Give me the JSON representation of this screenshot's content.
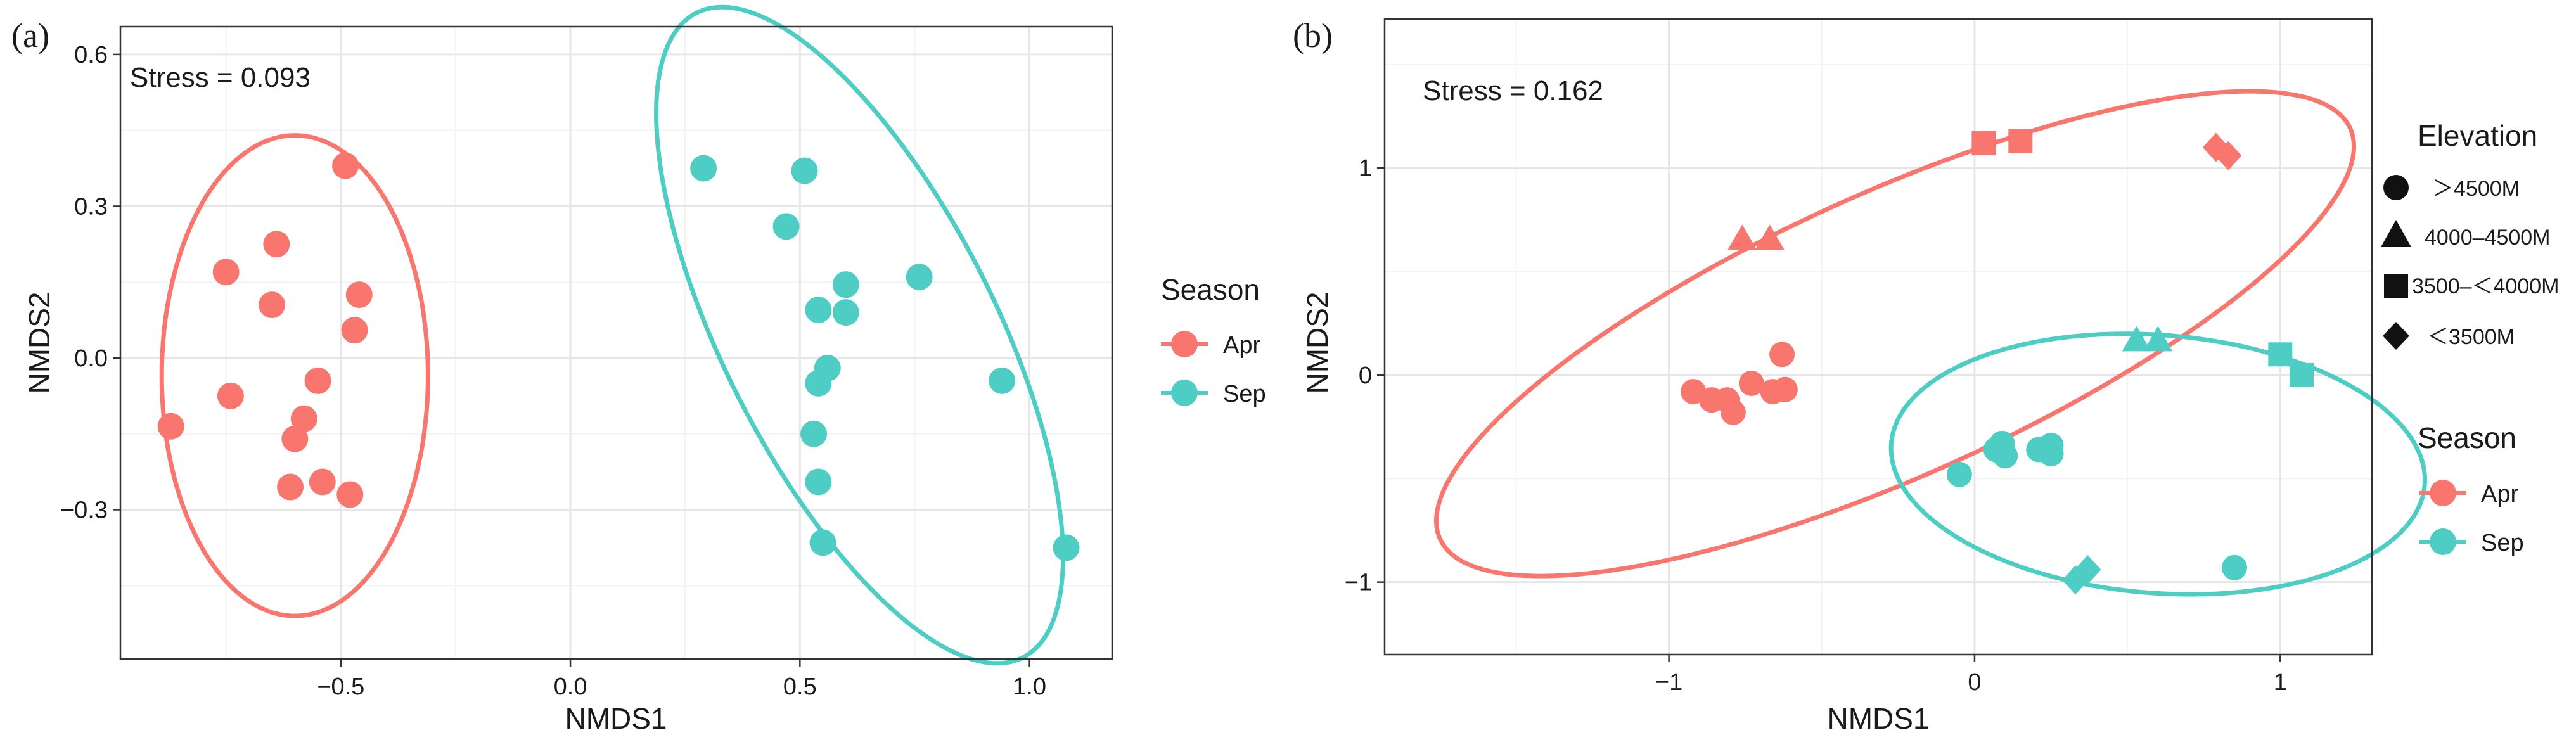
{
  "colors": {
    "apr": "#F8766D",
    "sep": "#4ECDC4",
    "grid_major": "#E6E6E6",
    "grid_minor": "#F3F3F3",
    "frame": "#333333"
  },
  "chart_data": [
    {
      "type": "scatter",
      "panel_label": "(a)",
      "stress_label": "Stress = 0.093",
      "xlabel": "NMDS1",
      "ylabel": "NMDS2",
      "xlim": [
        -0.98,
        1.18
      ],
      "ylim": [
        -0.595,
        0.655
      ],
      "x_ticks": [
        -0.5,
        0.0,
        0.5,
        1.0
      ],
      "x_tick_labels": [
        "−0.5",
        "0.0",
        "0.5",
        "1.0"
      ],
      "y_ticks": [
        -0.3,
        0.0,
        0.3,
        0.6
      ],
      "y_tick_labels": [
        "−0.3",
        "0.0",
        "0.3",
        "0.6"
      ],
      "legend": {
        "title": "Season",
        "entries": [
          "Apr",
          "Sep"
        ],
        "placement": "right"
      },
      "series": [
        {
          "name": "Apr",
          "color_key": "apr",
          "points": [
            {
              "x": -0.49,
              "y": 0.38
            },
            {
              "x": -0.64,
              "y": 0.225
            },
            {
              "x": -0.75,
              "y": 0.17
            },
            {
              "x": -0.65,
              "y": 0.105
            },
            {
              "x": -0.46,
              "y": 0.125
            },
            {
              "x": -0.47,
              "y": 0.055
            },
            {
              "x": -0.74,
              "y": -0.075
            },
            {
              "x": -0.55,
              "y": -0.045
            },
            {
              "x": -0.58,
              "y": -0.12
            },
            {
              "x": -0.6,
              "y": -0.16
            },
            {
              "x": -0.87,
              "y": -0.135
            },
            {
              "x": -0.61,
              "y": -0.255
            },
            {
              "x": -0.54,
              "y": -0.245
            },
            {
              "x": -0.48,
              "y": -0.27
            }
          ]
        },
        {
          "name": "Sep",
          "color_key": "sep",
          "points": [
            {
              "x": 0.29,
              "y": 0.375
            },
            {
              "x": 0.51,
              "y": 0.37
            },
            {
              "x": 0.47,
              "y": 0.26
            },
            {
              "x": 0.6,
              "y": 0.145
            },
            {
              "x": 0.54,
              "y": 0.095
            },
            {
              "x": 0.6,
              "y": 0.09
            },
            {
              "x": 0.76,
              "y": 0.16
            },
            {
              "x": 0.56,
              "y": -0.02
            },
            {
              "x": 0.54,
              "y": -0.05
            },
            {
              "x": 0.94,
              "y": -0.045
            },
            {
              "x": 0.53,
              "y": -0.15
            },
            {
              "x": 0.54,
              "y": -0.245
            },
            {
              "x": 0.55,
              "y": -0.365
            },
            {
              "x": 1.08,
              "y": -0.375
            }
          ]
        }
      ],
      "ellipses": [
        {
          "group": "Apr",
          "cx": -0.6,
          "cy": -0.035,
          "rx": 0.29,
          "ry": 0.475,
          "angle_deg": 0
        },
        {
          "group": "Sep",
          "cx": 0.63,
          "cy": 0.045,
          "rx": 0.73,
          "ry": 0.29,
          "angle_deg": -60
        }
      ]
    },
    {
      "type": "scatter",
      "panel_label": "(b)",
      "stress_label": "Stress = 0.162",
      "xlabel": "NMDS1",
      "ylabel": "NMDS2",
      "xlim": [
        -1.93,
        1.3
      ],
      "ylim": [
        -1.35,
        1.72
      ],
      "x_ticks": [
        -1,
        0,
        1
      ],
      "x_tick_labels": [
        "−1",
        "0",
        "1"
      ],
      "y_ticks": [
        -1,
        0,
        1
      ],
      "y_tick_labels": [
        "−1",
        "0",
        "1"
      ],
      "legend": {
        "elevation_title": "Elevation",
        "elevation_entries": [
          {
            "shape": "circle",
            "label": "＞4500M"
          },
          {
            "shape": "triangle",
            "label": "4000–4500M"
          },
          {
            "shape": "square",
            "label": "3500–＜4000M"
          },
          {
            "shape": "diamond",
            "label": "＜3500M"
          }
        ],
        "season_title": "Season",
        "season_entries": [
          "Apr",
          "Sep"
        ],
        "placement": "right"
      },
      "series": [
        {
          "name": "Apr",
          "color_key": "apr",
          "points": [
            {
              "x": -0.92,
              "y": -0.08,
              "shape": "circle"
            },
            {
              "x": -0.86,
              "y": -0.12,
              "shape": "circle"
            },
            {
              "x": -0.81,
              "y": -0.12,
              "shape": "circle"
            },
            {
              "x": -0.79,
              "y": -0.18,
              "shape": "circle"
            },
            {
              "x": -0.73,
              "y": -0.04,
              "shape": "circle"
            },
            {
              "x": -0.66,
              "y": -0.08,
              "shape": "circle"
            },
            {
              "x": -0.62,
              "y": -0.07,
              "shape": "circle"
            },
            {
              "x": -0.63,
              "y": 0.1,
              "shape": "circle"
            },
            {
              "x": -0.76,
              "y": 0.66,
              "shape": "triangle"
            },
            {
              "x": -0.67,
              "y": 0.66,
              "shape": "triangle"
            },
            {
              "x": 0.03,
              "y": 1.12,
              "shape": "square"
            },
            {
              "x": 0.15,
              "y": 1.13,
              "shape": "square"
            },
            {
              "x": 0.79,
              "y": 1.1,
              "shape": "diamond"
            },
            {
              "x": 0.83,
              "y": 1.06,
              "shape": "diamond"
            }
          ]
        },
        {
          "name": "Sep",
          "color_key": "sep",
          "points": [
            {
              "x": -0.05,
              "y": -0.48,
              "shape": "circle"
            },
            {
              "x": 0.07,
              "y": -0.36,
              "shape": "circle"
            },
            {
              "x": 0.09,
              "y": -0.33,
              "shape": "circle"
            },
            {
              "x": 0.1,
              "y": -0.39,
              "shape": "circle"
            },
            {
              "x": 0.21,
              "y": -0.36,
              "shape": "circle"
            },
            {
              "x": 0.25,
              "y": -0.34,
              "shape": "circle"
            },
            {
              "x": 0.25,
              "y": -0.38,
              "shape": "circle"
            },
            {
              "x": 0.85,
              "y": -0.93,
              "shape": "circle"
            },
            {
              "x": 0.53,
              "y": 0.17,
              "shape": "triangle"
            },
            {
              "x": 0.6,
              "y": 0.17,
              "shape": "triangle"
            },
            {
              "x": 1.0,
              "y": 0.1,
              "shape": "square"
            },
            {
              "x": 1.07,
              "y": 0.0,
              "shape": "square"
            },
            {
              "x": 0.33,
              "y": -0.99,
              "shape": "diamond"
            },
            {
              "x": 0.37,
              "y": -0.94,
              "shape": "diamond"
            }
          ]
        }
      ],
      "ellipses": [
        {
          "group": "Apr",
          "cx": -0.26,
          "cy": 0.2,
          "rx": 1.8,
          "ry": 0.62,
          "angle_deg": 36
        },
        {
          "group": "Sep",
          "cx": 0.6,
          "cy": -0.43,
          "rx": 0.62,
          "ry": 0.88,
          "angle_deg": 80
        }
      ]
    }
  ]
}
